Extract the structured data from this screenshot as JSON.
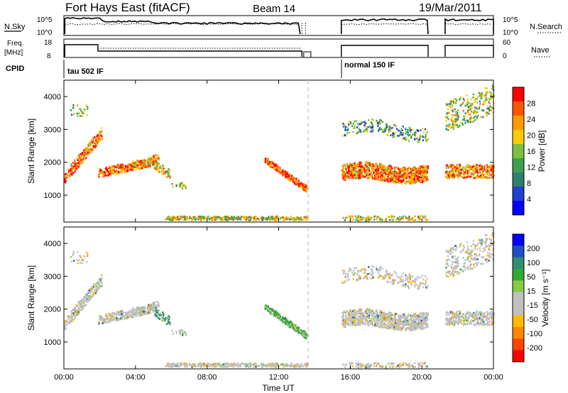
{
  "header": {
    "station": "Fort Hays East (fitACF)",
    "beam": "Beam 14",
    "date": "19/Mar/2011"
  },
  "small_panels": {
    "nsky_label": "N.Sky",
    "nsky_ticks": [
      "10^5",
      "10^0"
    ],
    "nsearch_label": "N.Search",
    "nsearch_ticks": [
      "10^5",
      "10^0"
    ],
    "freq_label_1": "Freq.",
    "freq_label_2": "[MHz]",
    "freq_ticks": [
      "18",
      "8"
    ],
    "nave_label": "Nave",
    "nave_ticks": [
      "60",
      "0"
    ],
    "cpid_label": "CPID",
    "cpid_1": "tau 502 IF",
    "cpid_2": "normal 150 IF"
  },
  "colors": {
    "power": [
      "#0000ff",
      "#2040d0",
      "#2f7f6f",
      "#3f9f4f",
      "#7fbf3f",
      "#ffcc00",
      "#ff9900",
      "#ff5500",
      "#ff0000"
    ],
    "velocity": [
      "#ff0000",
      "#ff4400",
      "#ff8800",
      "#ffbb00",
      "#c0c0c0",
      "#c0c0c0",
      "#88cc44",
      "#33aa33",
      "#2f8f6f",
      "#2050c0",
      "#0000ff"
    ]
  },
  "chart_data": [
    {
      "type": "heatmap",
      "name": "power",
      "ylabel": "Slant Range [km]",
      "y_ticks": [
        "1000",
        "2000",
        "3000",
        "4000"
      ],
      "ylim": [
        180,
        4500
      ],
      "xlim": [
        0,
        24
      ],
      "colorbar_label": "Power [dB]",
      "colorbar_ticks": [
        "4",
        "8",
        "12",
        "16",
        "20",
        "24",
        "28"
      ],
      "colorbar_range": [
        0,
        30
      ]
    },
    {
      "type": "heatmap",
      "name": "velocity",
      "ylabel": "Slant Range [km]",
      "y_ticks": [
        "1000",
        "2000",
        "3000",
        "4000"
      ],
      "ylim": [
        180,
        4500
      ],
      "xlim": [
        0,
        24
      ],
      "colorbar_label": "Velocity [m s⁻¹]",
      "colorbar_ticks": [
        "200",
        "100",
        "50",
        "15",
        "-15",
        "-50",
        "-100",
        "-200"
      ],
      "x_ticks": [
        "00:00",
        "04:00",
        "08:00",
        "12:00",
        "16:00",
        "20:00",
        "00:00"
      ],
      "xlabel": "Time UT"
    }
  ]
}
